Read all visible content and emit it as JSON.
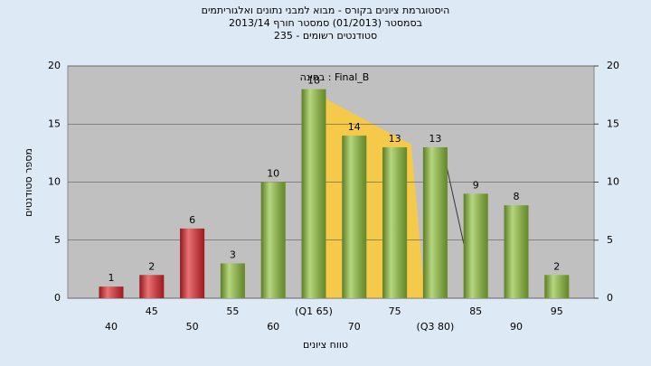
{
  "chart_data": {
    "type": "bar",
    "title": [
      "היסטוגרמת ציונים בקורס - מבוא למבני נתונים ואלגוריתמים",
      "בסמסטר (01/2013)  סמסטר חורף 2013/14",
      "סטודנטים רשומים - 235"
    ],
    "annotation": "בחינה : Final_B",
    "x_label": "טווח ציונים",
    "y_label": "מספר סטודנטים",
    "categories": [
      "40",
      "45",
      "50",
      "55",
      "60",
      "(Q1 65)",
      "70",
      "75",
      "(Q3 80)",
      "85",
      "90",
      "95"
    ],
    "values": [
      1,
      2,
      6,
      3,
      10,
      18,
      14,
      13,
      13,
      9,
      8,
      2
    ],
    "colors": [
      "#e0262b",
      "#e0262b",
      "#e0262b",
      "#8fc13a",
      "#8fc13a",
      "#8fc13a",
      "#8fc13a",
      "#8fc13a",
      "#8fc13a",
      "#8fc13a",
      "#8fc13a",
      "#8fc13a"
    ],
    "ylim": [
      0,
      20
    ],
    "yticks": [
      0,
      5,
      10,
      15,
      20
    ],
    "y2lim": [
      0,
      20
    ],
    "y2ticks": [
      0,
      5,
      10,
      15,
      20
    ],
    "grid": true
  }
}
